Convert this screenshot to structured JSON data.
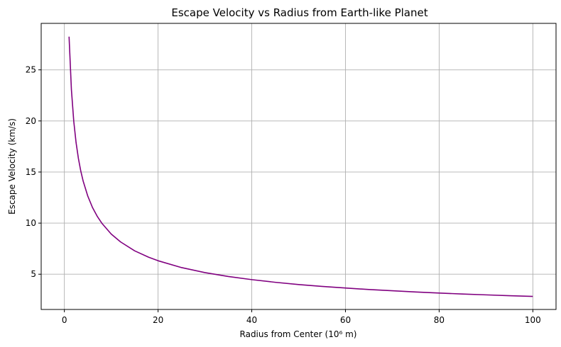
{
  "chart_data": {
    "type": "line",
    "title": "Escape Velocity vs Radius from Earth-like Planet",
    "xlabel": "Radius from Center (10⁶ m)",
    "ylabel": "Escape Velocity (km/s)",
    "xlim": [
      -4.95,
      104.95
    ],
    "ylim": [
      1.55,
      29.55
    ],
    "x_ticks": [
      0,
      20,
      40,
      60,
      80,
      100
    ],
    "y_ticks": [
      5,
      10,
      15,
      20,
      25
    ],
    "grid": true,
    "series": [
      {
        "color": "#800080",
        "x": [
          1,
          1.5,
          2,
          2.5,
          3,
          3.5,
          4,
          5,
          6,
          7,
          8,
          10,
          12,
          15,
          18,
          20,
          25,
          30,
          35,
          40,
          45,
          50,
          55,
          60,
          65,
          70,
          75,
          80,
          85,
          90,
          95,
          100
        ],
        "y": [
          28.25,
          23.07,
          19.98,
          17.87,
          16.31,
          15.1,
          14.13,
          12.64,
          11.53,
          10.68,
          9.99,
          8.93,
          8.16,
          7.29,
          6.66,
          6.32,
          5.65,
          5.16,
          4.78,
          4.47,
          4.21,
          3.99,
          3.81,
          3.65,
          3.5,
          3.38,
          3.26,
          3.16,
          3.06,
          2.98,
          2.9,
          2.83
        ]
      }
    ]
  }
}
